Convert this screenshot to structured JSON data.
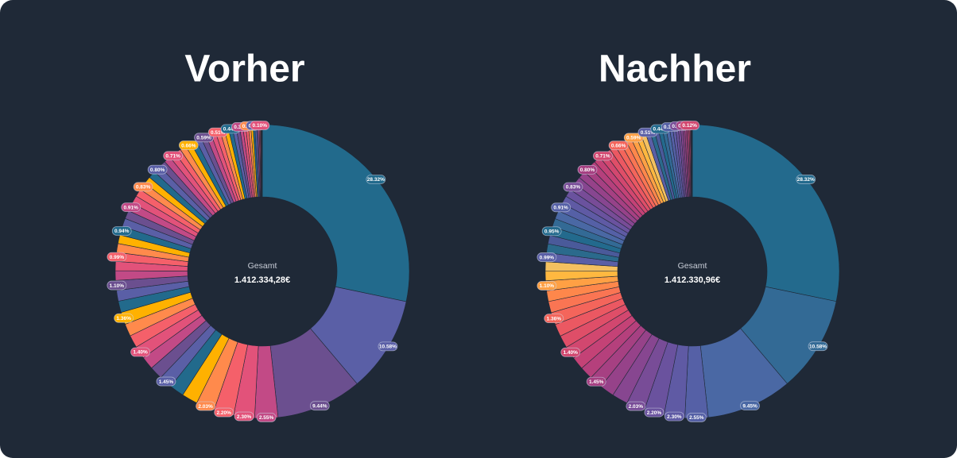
{
  "chart_data": [
    {
      "type": "pie",
      "title": "Vorher",
      "center_label": "Gesamt",
      "center_value": "1.412.334,28€",
      "palette": [
        "#226a8c",
        "#5a5fa6",
        "#6b4f8f",
        "#c24a86",
        "#e2527a",
        "#f5606a",
        "#ff8a4c",
        "#ffb100"
      ],
      "values": [
        28.32,
        10.58,
        9.44,
        2.55,
        2.3,
        2.2,
        2.03,
        1.75,
        1.6,
        1.45,
        1.43,
        1.42,
        1.4,
        1.38,
        1.37,
        1.36,
        1.25,
        1.18,
        1.1,
        1.05,
        1.02,
        0.99,
        0.97,
        0.95,
        0.94,
        0.93,
        0.92,
        0.91,
        0.88,
        0.85,
        0.83,
        0.82,
        0.81,
        0.8,
        0.77,
        0.74,
        0.71,
        0.69,
        0.68,
        0.66,
        0.63,
        0.61,
        0.59,
        0.56,
        0.53,
        0.51,
        0.48,
        0.46,
        0.44,
        0.41,
        0.38,
        0.35,
        0.32,
        0.29,
        0.26,
        0.24,
        0.21,
        0.19,
        0.16,
        0.13,
        0.1,
        0.08,
        0.06,
        0.05,
        0.04
      ],
      "value_labels": [
        "28.32%",
        "10.58%",
        "9.44%",
        "2.55%",
        "2.30%",
        "2.20%",
        "2.03%",
        null,
        null,
        "1.45%",
        null,
        null,
        "1.40%",
        null,
        null,
        "1.36%",
        null,
        null,
        "1.10%",
        null,
        null,
        "0.99%",
        null,
        null,
        "0.94%",
        null,
        null,
        "0.91%",
        null,
        null,
        "0.83%",
        null,
        null,
        "0.80%",
        null,
        null,
        "0.71%",
        null,
        null,
        "0.66%",
        null,
        null,
        "0.59%",
        null,
        null,
        "0.51%",
        null,
        null,
        "0.44%",
        null,
        null,
        "0.35%",
        null,
        null,
        "0.26%",
        null,
        null,
        "0.19%",
        null,
        null,
        "0.10%",
        null,
        null,
        null,
        null
      ]
    },
    {
      "type": "pie",
      "title": "Nachher",
      "center_label": "Gesamt",
      "center_value": "1.412.330,96€",
      "palette": [
        "#236a8d",
        "#336a95",
        "#4a68a4",
        "#5560a6",
        "#5f5aa4",
        "#6a529e",
        "#784c97",
        "#874690",
        "#964289",
        "#a64082",
        "#b5407c",
        "#c44276",
        "#d2476f",
        "#df4e68",
        "#eb5862",
        "#f4655b",
        "#fa7553",
        "#fe874b",
        "#ffa044",
        "#ffb840",
        "#f4c060",
        "#5a5fa6",
        "#2b6a8c",
        "#4a5a9a"
      ],
      "values": [
        28.32,
        10.58,
        9.45,
        2.55,
        2.3,
        2.2,
        2.03,
        1.75,
        1.6,
        1.45,
        1.43,
        1.42,
        1.4,
        1.38,
        1.37,
        1.36,
        1.25,
        1.18,
        1.1,
        1.05,
        1.02,
        0.99,
        0.97,
        0.96,
        0.95,
        0.93,
        0.92,
        0.91,
        0.88,
        0.85,
        0.83,
        0.82,
        0.81,
        0.8,
        0.77,
        0.74,
        0.71,
        0.69,
        0.68,
        0.66,
        0.63,
        0.61,
        0.59,
        0.56,
        0.53,
        0.51,
        0.48,
        0.46,
        0.44,
        0.41,
        0.38,
        0.35,
        0.32,
        0.29,
        0.26,
        0.24,
        0.21,
        0.19,
        0.16,
        0.14,
        0.12,
        0.08,
        0.06,
        0.05,
        0.04
      ],
      "value_labels": [
        "28.32%",
        "10.58%",
        "9.45%",
        "2.55%",
        "2.30%",
        "2.20%",
        "2.03%",
        null,
        null,
        "1.45%",
        null,
        null,
        "1.40%",
        null,
        null,
        "1.36%",
        null,
        null,
        "1.10%",
        null,
        null,
        "0.99%",
        null,
        null,
        "0.95%",
        null,
        null,
        "0.91%",
        null,
        null,
        "0.83%",
        null,
        null,
        "0.80%",
        null,
        null,
        "0.71%",
        null,
        null,
        "0.66%",
        null,
        null,
        "0.59%",
        null,
        null,
        "0.51%",
        null,
        null,
        "0.44%",
        null,
        null,
        "0.35%",
        null,
        null,
        "0.26%",
        null,
        null,
        "0.19%",
        null,
        null,
        "0.12%",
        null,
        null,
        null,
        null
      ]
    }
  ]
}
